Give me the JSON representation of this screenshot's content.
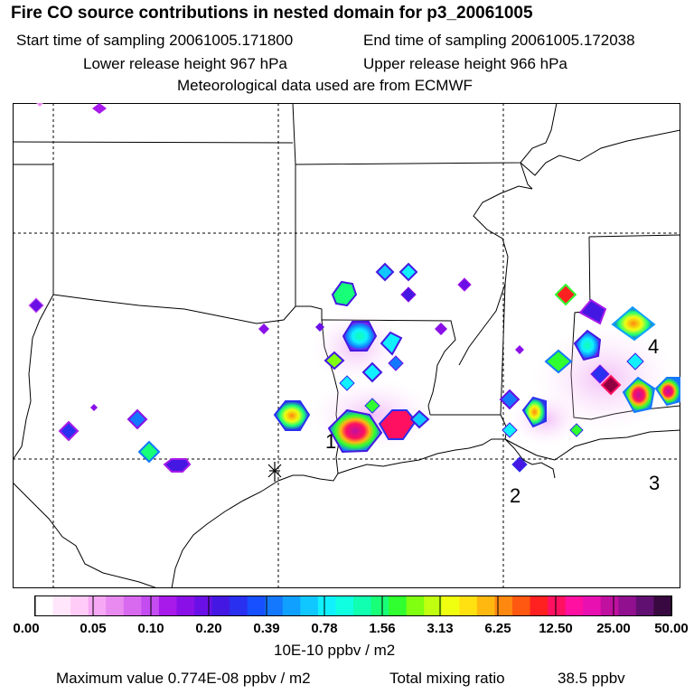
{
  "title": "Fire CO source contributions in nested domain for p3_20061005",
  "sampling": {
    "start_label": "Start time of sampling 20061005.171800",
    "end_label": "End time of sampling 20061005.172038"
  },
  "release": {
    "lower_label": "Lower release height  967 hPa",
    "upper_label": "Upper release height  966 hPa"
  },
  "met_label": "Meteorological data used are from ECMWF",
  "map_labels": [
    "1",
    "2",
    "3",
    "4"
  ],
  "colorbar": {
    "ticks": [
      "0.00",
      "0.05",
      "0.10",
      "0.20",
      "0.39",
      "0.78",
      "1.56",
      "3.13",
      "6.25",
      "12.50",
      "25.00",
      "50.00"
    ],
    "unit": "10E-10 ppbv / m2",
    "colors": [
      "#ffffff",
      "#ffe6fb",
      "#ffccf7",
      "#f6a8f4",
      "#e88af0",
      "#d86af0",
      "#c44cf0",
      "#a81aea",
      "#8a10e8",
      "#6a10e6",
      "#4418e2",
      "#2a30f0",
      "#1650ff",
      "#1478ff",
      "#10a0ff",
      "#10c8ff",
      "#10f0ff",
      "#10ffe0",
      "#10ffb0",
      "#18ff78",
      "#30ff30",
      "#80ff10",
      "#c0ff10",
      "#f0ff10",
      "#ffe010",
      "#ffb810",
      "#ff8810",
      "#ff5810",
      "#ff2020",
      "#ff1060",
      "#ff10a0",
      "#e810b0",
      "#c010a0",
      "#901090",
      "#601070",
      "#380840"
    ]
  },
  "footer": {
    "max_label": "Maximum value  0.774E-08 ppbv / m2",
    "total_label": "Total mixing ratio",
    "total_value": "38.5 ppbv"
  }
}
